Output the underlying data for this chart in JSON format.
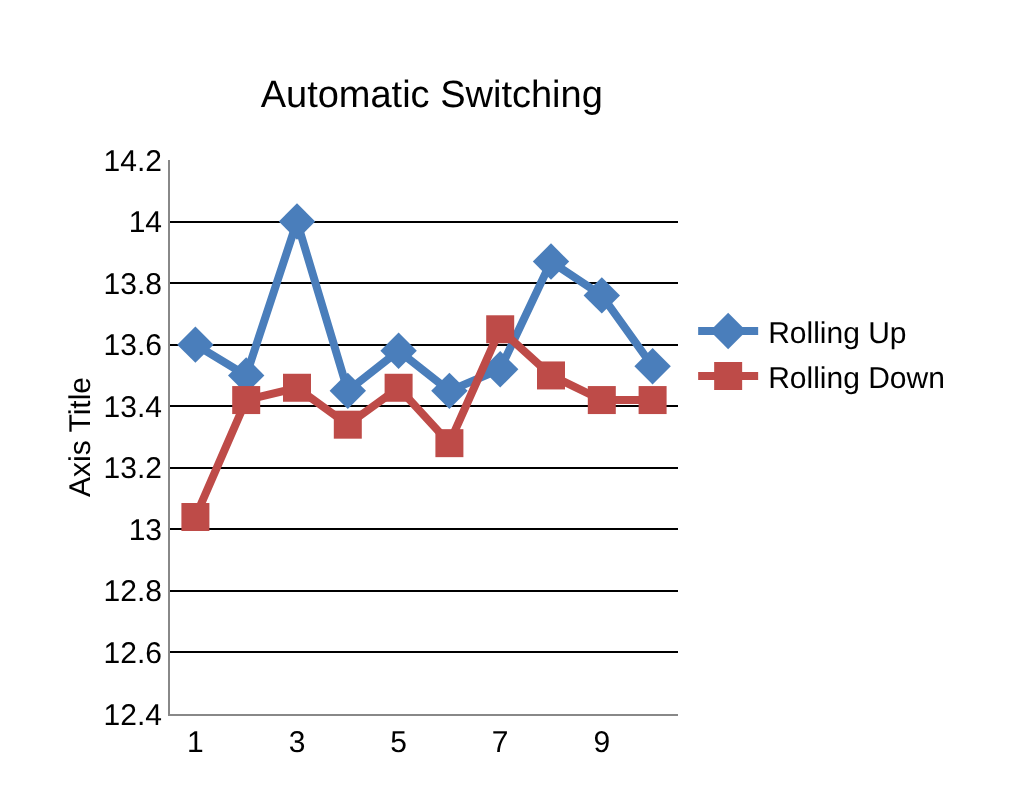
{
  "chart_data": {
    "type": "line",
    "title": "Automatic Switching",
    "ylabel": "Axis Title",
    "categories": [
      "1",
      null,
      "3",
      null,
      "5",
      null,
      "7",
      null,
      "9",
      null
    ],
    "series": [
      {
        "name": "Rolling Up",
        "color": "#4a7ebb",
        "marker": "diamond",
        "values": [
          13.6,
          13.5,
          14.0,
          13.45,
          13.58,
          13.45,
          13.52,
          13.87,
          13.76,
          13.53
        ]
      },
      {
        "name": "Rolling Down",
        "color": "#be4b48",
        "marker": "square",
        "values": [
          13.04,
          13.42,
          13.46,
          13.34,
          13.46,
          13.28,
          13.65,
          13.5,
          13.42,
          13.42
        ]
      }
    ],
    "ylim": [
      12.4,
      14.2
    ],
    "yticks": [
      12.4,
      12.6,
      12.8,
      13,
      13.2,
      13.4,
      13.6,
      13.8,
      14,
      14.2
    ],
    "grid": "y",
    "legend": "right"
  }
}
